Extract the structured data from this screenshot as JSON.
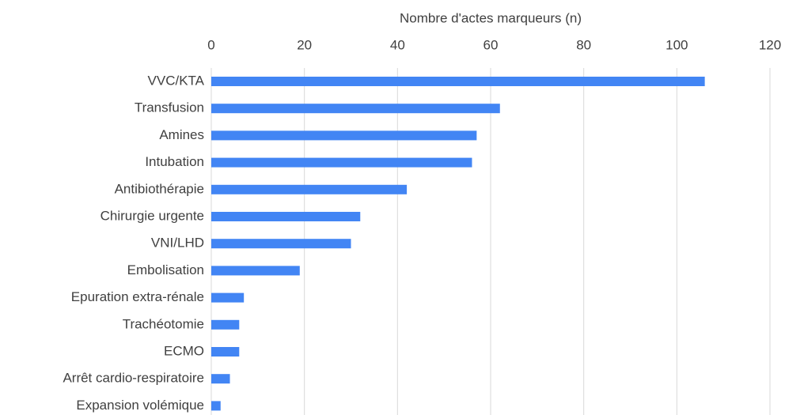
{
  "chart_data": {
    "type": "bar",
    "orientation": "horizontal",
    "xlabel": "Nombre d'actes marqueurs (n)",
    "categories": [
      "VVC/KTA",
      "Transfusion",
      "Amines",
      "Intubation",
      "Antibiothérapie",
      "Chirurgie urgente",
      "VNI/LHD",
      "Embolisation",
      "Epuration extra-rénale",
      "Trachéotomie",
      "ECMO",
      "Arrêt cardio-respiratoire",
      "Expansion volémique"
    ],
    "values": [
      106,
      62,
      57,
      56,
      42,
      32,
      30,
      19,
      7,
      6,
      6,
      4,
      2
    ],
    "color": "#4285f4",
    "xlim": [
      0,
      120
    ],
    "xticks": [
      0,
      20,
      40,
      60,
      80,
      100,
      120
    ],
    "grid": true
  }
}
